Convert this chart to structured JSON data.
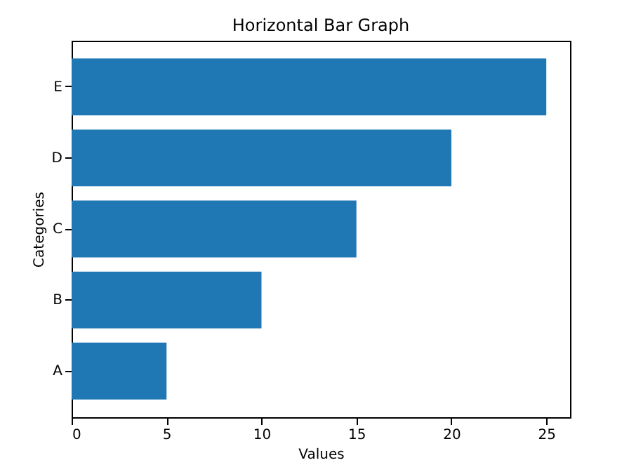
{
  "chart_data": {
    "type": "bar",
    "orientation": "horizontal",
    "title": "Horizontal Bar Graph",
    "xlabel": "Values",
    "ylabel": "Categories",
    "categories": [
      "E",
      "D",
      "C",
      "B",
      "A"
    ],
    "values": [
      25,
      20,
      15,
      10,
      5
    ],
    "color": "#1f77b4",
    "xlim": [
      0,
      26.25
    ],
    "xticks": [
      0,
      5,
      10,
      15,
      20,
      25
    ],
    "grid": false
  }
}
